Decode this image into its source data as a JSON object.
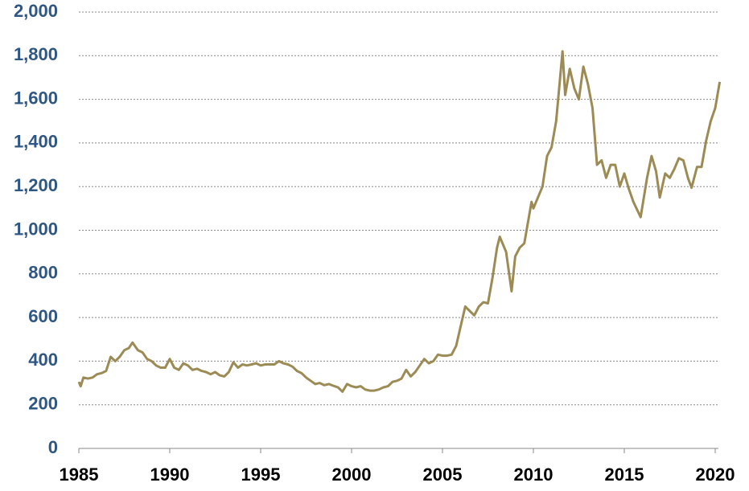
{
  "chart_data": {
    "type": "line",
    "x": [
      1985.0,
      1985.1,
      1985.25,
      1985.5,
      1985.75,
      1986.0,
      1986.25,
      1986.5,
      1986.75,
      1987.0,
      1987.25,
      1987.5,
      1987.75,
      1987.95,
      1988.25,
      1988.5,
      1988.75,
      1989.0,
      1989.25,
      1989.5,
      1989.75,
      1990.0,
      1990.25,
      1990.5,
      1990.75,
      1991.0,
      1991.25,
      1991.5,
      1991.75,
      1992.0,
      1992.25,
      1992.5,
      1992.75,
      1993.0,
      1993.25,
      1993.5,
      1993.75,
      1994.0,
      1994.25,
      1994.5,
      1994.75,
      1995.0,
      1995.25,
      1995.5,
      1995.75,
      1996.0,
      1996.25,
      1996.5,
      1996.75,
      1997.0,
      1997.25,
      1997.5,
      1997.75,
      1998.0,
      1998.25,
      1998.5,
      1998.75,
      1999.0,
      1999.25,
      1999.5,
      1999.75,
      2000.0,
      2000.25,
      2000.5,
      2000.75,
      2001.0,
      2001.25,
      2001.5,
      2001.75,
      2002.0,
      2002.25,
      2002.5,
      2002.75,
      2003.0,
      2003.25,
      2003.5,
      2003.75,
      2004.0,
      2004.25,
      2004.5,
      2004.75,
      2005.0,
      2005.25,
      2005.5,
      2005.75,
      2006.0,
      2006.25,
      2006.5,
      2006.75,
      2007.0,
      2007.25,
      2007.5,
      2007.75,
      2008.0,
      2008.15,
      2008.5,
      2008.8,
      2009.0,
      2009.25,
      2009.5,
      2009.9,
      2010.0,
      2010.25,
      2010.5,
      2010.75,
      2011.0,
      2011.25,
      2011.6,
      2011.75,
      2012.0,
      2012.25,
      2012.5,
      2012.75,
      2013.0,
      2013.25,
      2013.5,
      2013.75,
      2014.0,
      2014.25,
      2014.5,
      2014.75,
      2015.0,
      2015.25,
      2015.5,
      2015.9,
      2016.25,
      2016.5,
      2016.75,
      2016.95,
      2017.25,
      2017.5,
      2017.75,
      2018.0,
      2018.25,
      2018.5,
      2018.7,
      2019.0,
      2019.25,
      2019.5,
      2019.75,
      2020.0,
      2020.25
    ],
    "series": [
      {
        "color": "#9c8b54",
        "values": [
          305,
          285,
          325,
          320,
          325,
          340,
          345,
          355,
          420,
          400,
          420,
          450,
          460,
          485,
          450,
          440,
          410,
          400,
          380,
          370,
          370,
          410,
          370,
          360,
          390,
          380,
          360,
          365,
          355,
          350,
          340,
          350,
          335,
          330,
          350,
          395,
          370,
          385,
          380,
          385,
          390,
          380,
          385,
          385,
          385,
          400,
          390,
          385,
          375,
          355,
          345,
          325,
          310,
          295,
          300,
          290,
          295,
          287,
          280,
          260,
          295,
          285,
          280,
          285,
          270,
          265,
          265,
          270,
          280,
          285,
          305,
          310,
          320,
          360,
          330,
          350,
          380,
          410,
          390,
          400,
          430,
          425,
          425,
          430,
          470,
          560,
          650,
          630,
          610,
          650,
          670,
          665,
          780,
          920,
          970,
          900,
          720,
          880,
          920,
          940,
          1130,
          1100,
          1150,
          1200,
          1340,
          1380,
          1500,
          1820,
          1620,
          1740,
          1650,
          1600,
          1750,
          1670,
          1560,
          1300,
          1320,
          1240,
          1300,
          1300,
          1200,
          1260,
          1190,
          1130,
          1060,
          1240,
          1340,
          1270,
          1150,
          1260,
          1240,
          1280,
          1330,
          1320,
          1240,
          1195,
          1290,
          1290,
          1410,
          1500,
          1560,
          1680
        ]
      }
    ],
    "xlim": [
      1985,
      2020.5
    ],
    "xticks": [
      1985,
      1990,
      1995,
      2000,
      2005,
      2010,
      2015,
      2020
    ],
    "ylim": [
      0,
      2000
    ],
    "yticks": [
      0,
      200,
      400,
      600,
      800,
      {
        "value": 1000,
        "label": "1,000"
      },
      {
        "value": 1200,
        "label": "1,200"
      },
      {
        "value": 1400,
        "label": "1,400"
      },
      {
        "value": 1600,
        "label": "1,600"
      },
      {
        "value": 1800,
        "label": "1,800"
      },
      {
        "value": 2000,
        "label": "2,000"
      }
    ],
    "grid": true
  }
}
